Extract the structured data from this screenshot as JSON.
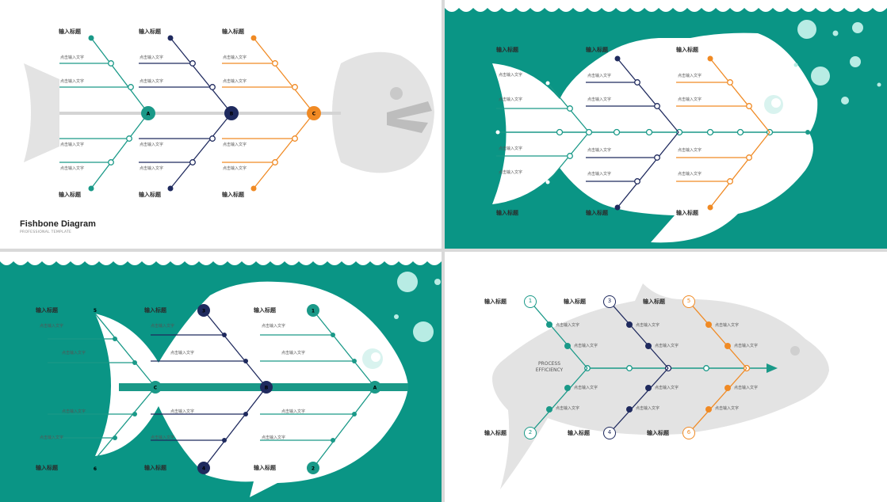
{
  "colors": {
    "teal": "#1a9988",
    "navy": "#1f2a5e",
    "orange": "#f08a24",
    "bg_teal": "#0a9585",
    "grey": "#e3e3e3"
  },
  "panel1": {
    "title": "Fishbone Diagram",
    "subtitle": "PROFESSIONAL TEMPLATE",
    "nodes": [
      "A",
      "B",
      "C"
    ],
    "heading": "输入标题",
    "text": "点击输入文字"
  },
  "panel2": {
    "heading": "输入标题",
    "text": "点击输入文字"
  },
  "panel3": {
    "heading": "输入标题",
    "text": "点击输入文字",
    "numbers": [
      "1",
      "2",
      "3",
      "4",
      "5",
      "6"
    ],
    "nodes": [
      "A",
      "B",
      "C"
    ]
  },
  "panel4": {
    "heading": "输入标题",
    "text": "点击输入文字",
    "center_line1": "PROCESS",
    "center_line2": "EFFICIENCY",
    "numbers": [
      "1",
      "2",
      "3",
      "4",
      "5",
      "6"
    ]
  }
}
